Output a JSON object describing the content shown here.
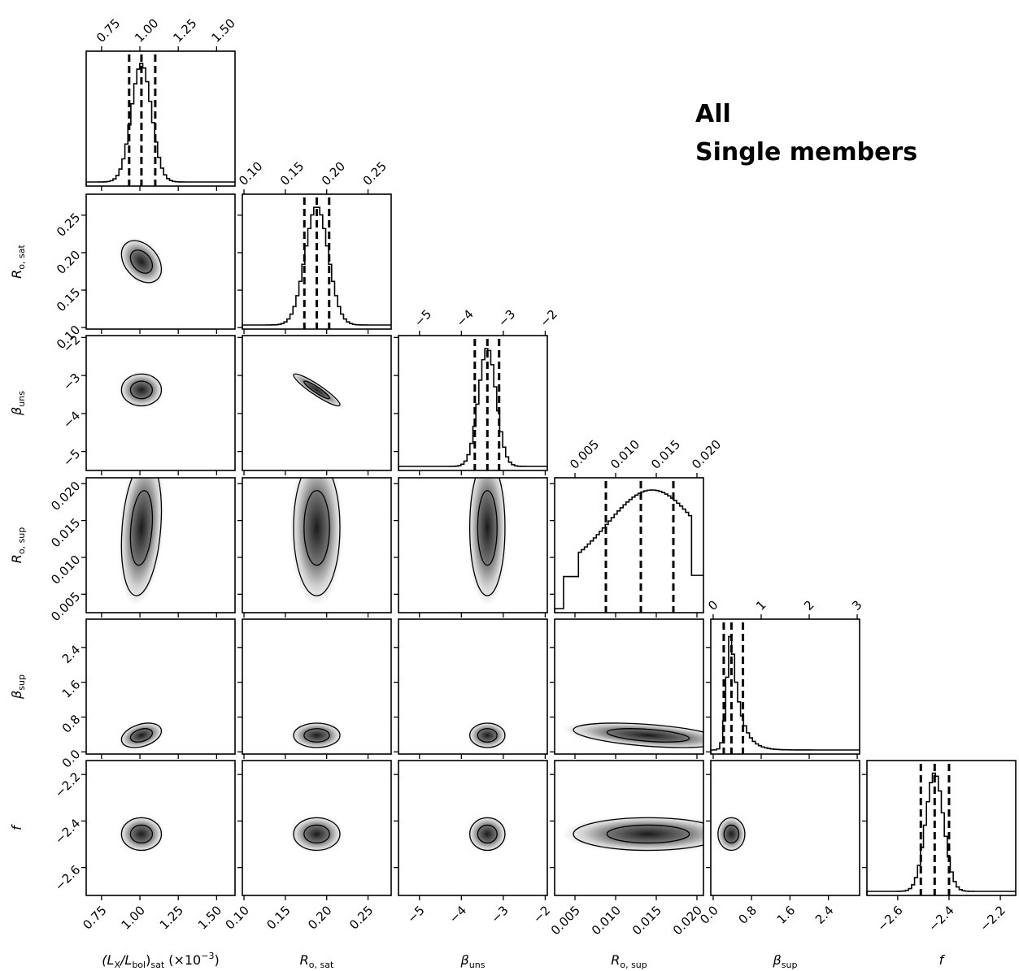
{
  "chart_data": {
    "type": "corner",
    "annotations": [
      "All",
      "Single members"
    ],
    "parameters": [
      {
        "name": "(L_X/L_bol)_sat",
        "label": {
          "base": "(L",
          "sub1": "X",
          "mid": "/L",
          "sub2": "bol",
          "end": ")",
          "sub3": "sat",
          "suffix": " (×10",
          "sup": "−3",
          "close": ")"
        },
        "range": [
          0.65,
          1.62
        ],
        "ticks": [
          0.75,
          1.0,
          1.25,
          1.5
        ],
        "tick_labels": [
          "0.75",
          "1.00",
          "1.25",
          "1.50"
        ],
        "mean": 1.01,
        "sd": 0.065,
        "quantiles": [
          0.93,
          1.01,
          1.1
        ]
      },
      {
        "name": "R_o,sat",
        "label": {
          "base": "R",
          "sub": "o, sat"
        },
        "range": [
          0.098,
          0.278
        ],
        "ticks": [
          0.1,
          0.15,
          0.2,
          0.25
        ],
        "tick_labels": [
          "0.10",
          "0.15",
          "0.20",
          "0.25"
        ],
        "mean": 0.188,
        "sd": 0.014,
        "quantiles": [
          0.173,
          0.188,
          0.203
        ]
      },
      {
        "name": "beta_uns",
        "label": {
          "base": "β",
          "sub": "uns"
        },
        "range": [
          -5.5,
          -1.95
        ],
        "ticks": [
          -5,
          -4,
          -3,
          -2
        ],
        "tick_labels": [
          "−5",
          "−4",
          "−3",
          "−2"
        ],
        "mean": -3.38,
        "sd": 0.21,
        "quantiles": [
          -3.68,
          -3.38,
          -3.1
        ]
      },
      {
        "name": "R_o,sup",
        "label": {
          "base": "R",
          "sub": "o, sup"
        },
        "range": [
          0.0025,
          0.0208
        ],
        "ticks": [
          0.005,
          0.01,
          0.015,
          0.02
        ],
        "tick_labels": [
          "0.005",
          "0.010",
          "0.015",
          "0.020"
        ],
        "mean": 0.014,
        "sd": 0.0046,
        "quantiles": [
          0.0088,
          0.0131,
          0.0171
        ]
      },
      {
        "name": "beta_sup",
        "label": {
          "base": "β",
          "sub": "sup"
        },
        "range": [
          -0.05,
          3.05
        ],
        "ticks": [
          0,
          1,
          2,
          3
        ],
        "tick_labels": [
          "0",
          "1",
          "2",
          "3"
        ],
        "bottom_ticks": [
          0.0,
          0.8,
          1.6,
          2.4
        ],
        "bottom_tick_labels": [
          "0.0",
          "0.8",
          "1.6",
          "2.4"
        ],
        "mean": 0.38,
        "sd": 0.14,
        "quantiles": [
          0.22,
          0.38,
          0.62
        ]
      },
      {
        "name": "f",
        "label": {
          "base": "f"
        },
        "range": [
          -2.72,
          -2.14
        ],
        "ticks": [
          -2.6,
          -2.4,
          -2.2
        ],
        "tick_labels": [
          "−2.6",
          "−2.4",
          "−2.2"
        ],
        "mean": -2.456,
        "sd": 0.035,
        "quantiles": [
          -2.51,
          -2.456,
          -2.4
        ]
      }
    ],
    "left_axis_ticks": {
      "R_o,sat": {
        "values": [
          0.1,
          0.15,
          0.2,
          0.25
        ],
        "labels": [
          "0.10",
          "0.15",
          "0.20",
          "0.25"
        ]
      },
      "beta_uns": {
        "values": [
          -5,
          -4,
          -3,
          -2
        ],
        "labels": [
          "−5",
          "−4",
          "−3",
          "−2"
        ]
      },
      "R_o,sup": {
        "values": [
          0.005,
          0.01,
          0.015,
          0.02
        ],
        "labels": [
          "0.005",
          "0.010",
          "0.015",
          "0.020"
        ]
      },
      "beta_sup": {
        "values": [
          0.0,
          0.8,
          1.6,
          2.4
        ],
        "labels": [
          "0.0",
          "0.8",
          "1.6",
          "2.4"
        ]
      },
      "f": {
        "values": [
          -2.6,
          -2.4,
          -2.2
        ],
        "labels": [
          "−2.6",
          "−2.4",
          "−2.2"
        ]
      }
    },
    "correlations": {
      "1-0": -0.35,
      "2-0": 0.0,
      "2-1": -0.92,
      "3-0": 0.25,
      "3-1": 0.0,
      "3-2": 0.0,
      "4-0": 0.35,
      "4-1": 0.0,
      "4-2": 0.0,
      "4-3": -0.45,
      "5-0": 0.0,
      "5-1": 0.0,
      "5-2": 0.0,
      "5-3": 0.0,
      "5-4": 0.0
    },
    "histogram_style": "step",
    "contour_levels": 2,
    "quantile_line_style": "dashed"
  }
}
